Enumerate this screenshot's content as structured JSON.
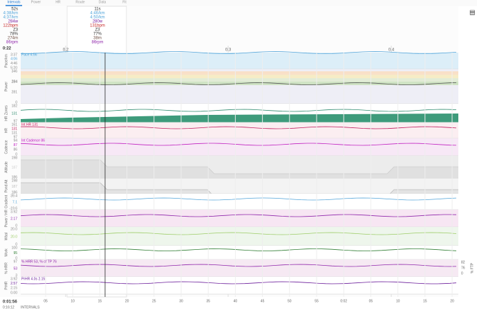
{
  "tabs": [
    "Intervals",
    "Power",
    "HR",
    "Route",
    "Data",
    "Fit"
  ],
  "summary": {
    "time": "0:22",
    "rows": [
      "52s",
      "4:38/km",
      "4:37/km",
      "284w",
      "122bpm",
      "Z3",
      "78%",
      "274m",
      "86rpm"
    ]
  },
  "hover": {
    "rows": [
      "11s",
      "4:46/km",
      "4:50/km",
      "280w",
      "131bpm",
      "Z3",
      "77%",
      "38m",
      "86rpm"
    ]
  },
  "distance_marks": [
    "0.2",
    "0.3",
    "0.4"
  ],
  "panels": [
    {
      "label": "Pace/km",
      "ticks": [
        "3:37",
        "4:06",
        "4:46",
        "5:20"
      ],
      "note": "Pace 4:56"
    },
    {
      "label": "Power",
      "ticks": [
        "346",
        "284",
        "281",
        "0"
      ]
    },
    {
      "label": "HR Zones",
      "ticks": [
        "182",
        "131",
        "97"
      ]
    },
    {
      "label": "HR",
      "ticks": [
        "161",
        "131",
        "131",
        "97"
      ],
      "note": "Int HR 131"
    },
    {
      "label": "Cadence",
      "ticks": [
        "94",
        "87",
        "86",
        "0"
      ],
      "note": "Int Cadence 86"
    },
    {
      "label": "Altitude",
      "ticks": [
        "198",
        "187",
        "186"
      ]
    },
    {
      "label": "Pond Alt",
      "ticks": [
        "198",
        "187",
        "186"
      ]
    },
    {
      "label": "Gradient",
      "ticks": [
        "39.4",
        "7.1",
        "-19.6"
      ]
    },
    {
      "label": "Power / HR",
      "ticks": [
        "3.92",
        "2.17",
        "0"
      ]
    },
    {
      "label": "Wbal",
      "ticks": [
        "20.0",
        "20.0",
        "0"
      ]
    },
    {
      "label": "Work",
      "ticks": [
        "100",
        "95",
        "0"
      ]
    },
    {
      "label": "% HRR",
      "ticks": [
        "97",
        "53",
        "3"
      ],
      "note": "% HRR 53, % of TP 76",
      "right_label": "% FTP",
      "right_ticks": [
        "82",
        "76",
        "0"
      ]
    },
    {
      "label": "PrHR",
      "ticks": [
        "3.92",
        "2.57",
        "2.15",
        "0.00"
      ],
      "note": "PrHR 4.0s 2.15"
    }
  ],
  "x_ticks": [
    "05",
    "10",
    "15",
    "20",
    "25",
    "30",
    "35",
    "40",
    "45",
    "50",
    "55",
    "0:02",
    "05",
    "10",
    "15",
    "20"
  ],
  "footer": {
    "time": "0:01:56",
    "total": "0:16:12",
    "section": "INTERVALS"
  }
}
